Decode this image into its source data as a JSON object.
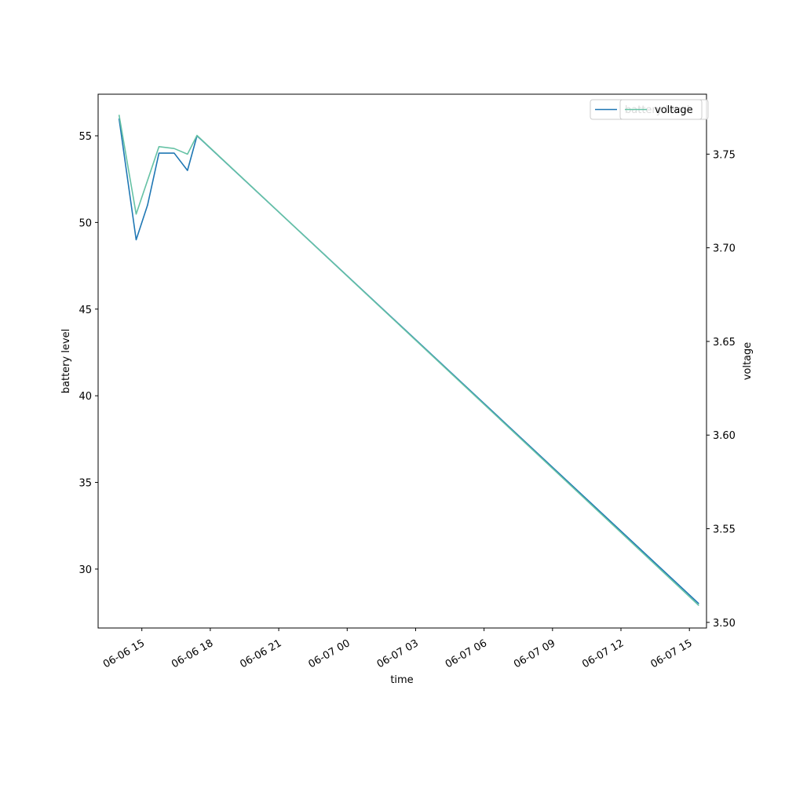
{
  "chart_data": {
    "type": "line",
    "xlabel": "time",
    "ylabel_left": "battery level",
    "ylabel_right": "voltage",
    "ylim_left": [
      26.6,
      57.4
    ],
    "ylim_right": [
      3.497,
      3.782
    ],
    "xlim": [
      "2023-06-06 13:05",
      "2023-06-07 15:45"
    ],
    "x_tick_labels": [
      "06-06 15",
      "06-06 18",
      "06-06 21",
      "06-07 00",
      "06-07 03",
      "06-07 06",
      "06-07 09",
      "06-07 12",
      "06-07 15"
    ],
    "x_ticks": [
      "2023-06-06 15:00",
      "2023-06-06 18:00",
      "2023-06-06 21:00",
      "2023-06-07 00:00",
      "2023-06-07 03:00",
      "2023-06-07 06:00",
      "2023-06-07 09:00",
      "2023-06-07 12:00",
      "2023-06-07 15:00"
    ],
    "left_ticks": [
      30,
      35,
      40,
      45,
      50,
      55
    ],
    "right_ticks": [
      3.5,
      3.55,
      3.6,
      3.65,
      3.7,
      3.75
    ],
    "right_tick_labels": [
      "3.50",
      "3.55",
      "3.60",
      "3.65",
      "3.70",
      "3.75"
    ],
    "grid": false,
    "legend_position": "top-right",
    "series": [
      {
        "name": "battery level",
        "axis": "left",
        "color": "#1f77b4",
        "x": [
          "2023-06-06 14:00",
          "2023-06-06 14:45",
          "2023-06-06 15:15",
          "2023-06-06 15:45",
          "2023-06-06 16:25",
          "2023-06-06 17:00",
          "2023-06-06 17:25",
          "2023-06-07 15:25"
        ],
        "y": [
          56,
          49,
          51,
          54,
          54,
          53,
          55,
          28
        ]
      },
      {
        "name": "voltage",
        "axis": "right",
        "color": "#66c2a5",
        "x": [
          "2023-06-06 14:00",
          "2023-06-06 14:45",
          "2023-06-06 15:45",
          "2023-06-06 16:25",
          "2023-06-06 17:00",
          "2023-06-06 17:25",
          "2023-06-07 15:25"
        ],
        "y": [
          3.771,
          3.718,
          3.754,
          3.753,
          3.75,
          3.76,
          3.509
        ]
      }
    ],
    "legends": [
      {
        "entries": [
          "battery level"
        ]
      },
      {
        "entries": [
          "voltage"
        ]
      }
    ]
  }
}
